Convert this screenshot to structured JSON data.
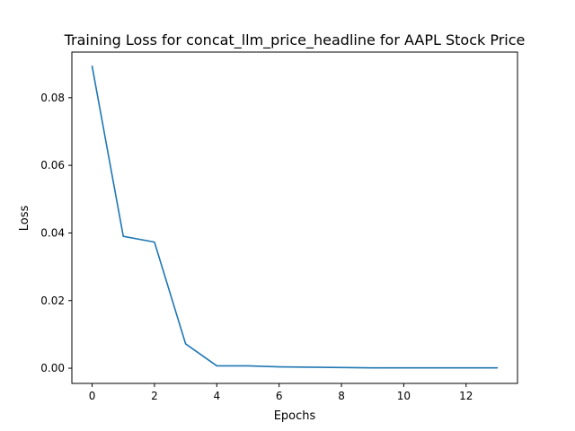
{
  "chart_data": {
    "type": "line",
    "title": "Training Loss for concat_llm_price_headline for AAPL Stock Price",
    "xlabel": "Epochs",
    "ylabel": "Loss",
    "xlim": [
      -0.65,
      13.65
    ],
    "ylim": [
      -0.0045,
      0.0935
    ],
    "xticks": [
      {
        "value": 0,
        "label": "0"
      },
      {
        "value": 2,
        "label": "2"
      },
      {
        "value": 4,
        "label": "4"
      },
      {
        "value": 6,
        "label": "6"
      },
      {
        "value": 8,
        "label": "8"
      },
      {
        "value": 10,
        "label": "10"
      },
      {
        "value": 12,
        "label": "12"
      }
    ],
    "yticks": [
      {
        "value": 0.0,
        "label": "0.00"
      },
      {
        "value": 0.02,
        "label": "0.02"
      },
      {
        "value": 0.04,
        "label": "0.04"
      },
      {
        "value": 0.06,
        "label": "0.06"
      },
      {
        "value": 0.08,
        "label": "0.08"
      }
    ],
    "grid": false,
    "legend": "none",
    "series": [
      {
        "color": "#1f77b4",
        "x": [
          0,
          1,
          2,
          3,
          4,
          5,
          6,
          7,
          8,
          9,
          10,
          11,
          12,
          13
        ],
        "y": [
          0.0893,
          0.039,
          0.0373,
          0.0072,
          0.0007,
          0.0007,
          0.0004,
          0.0003,
          0.0002,
          0.0001,
          0.0001,
          0.0001,
          0.0001,
          0.0001
        ]
      }
    ]
  }
}
